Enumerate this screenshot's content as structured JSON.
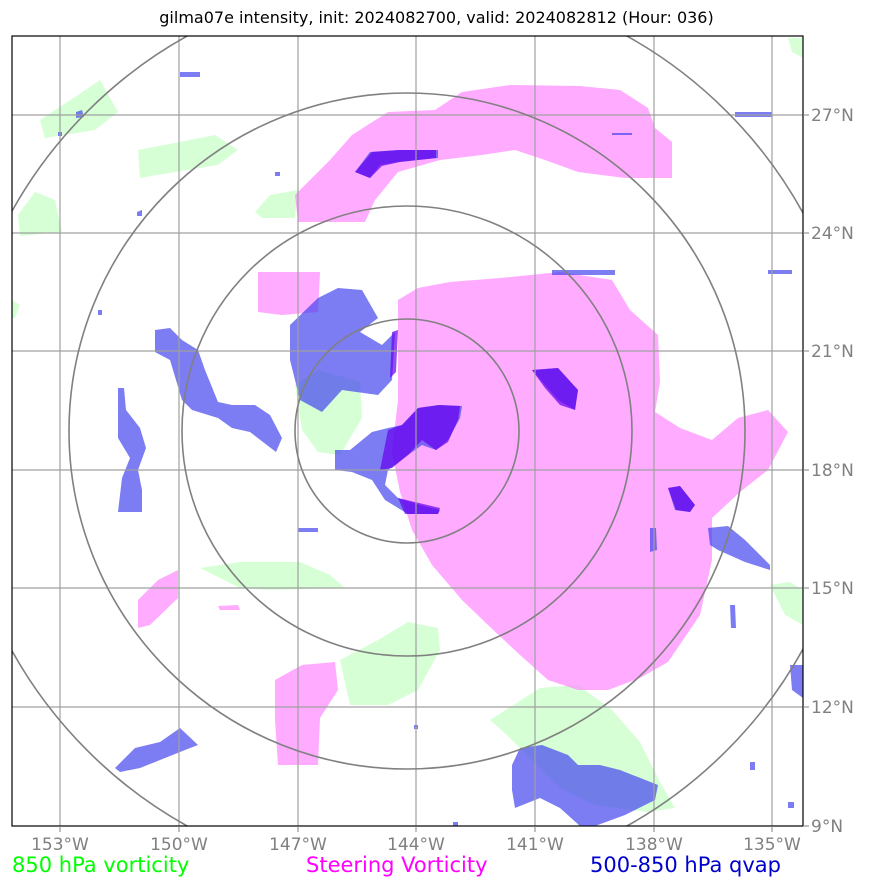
{
  "title": "gilma07e intensity, init: 2024082700, valid: 2024082812 (Hour: 036)",
  "x_ticks": [
    "153°W",
    "150°W",
    "147°W",
    "144°W",
    "141°W",
    "138°W",
    "135°W"
  ],
  "y_ticks": [
    "27°N",
    "24°N",
    "21°N",
    "18°N",
    "15°N",
    "12°N",
    "9°N"
  ],
  "legend": {
    "left": {
      "text": "850 hPa vorticity",
      "color": "#00ff00"
    },
    "mid": {
      "text": "Steering Vorticity",
      "color": "#ff00ff"
    },
    "right": {
      "text": "500-850 hPa qvap",
      "color": "#0000cc"
    }
  },
  "colors": {
    "vort850": "#c8ffc8",
    "steering": "#ff88ff",
    "qvap": "#4444ee",
    "qvap_dark": "#6600ee",
    "grid": "#a0a0a0",
    "rings": "#808080"
  }
}
